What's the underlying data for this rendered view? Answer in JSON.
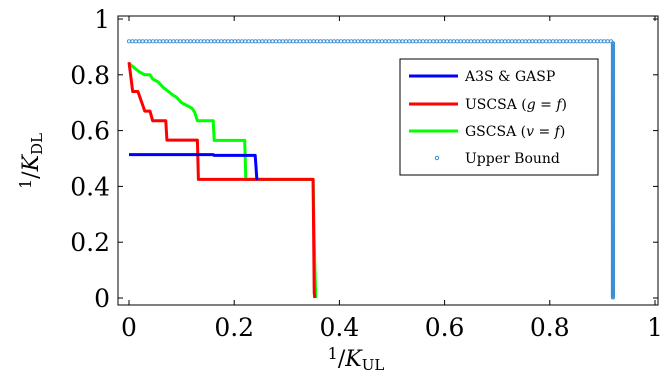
{
  "chart_data": {
    "type": "line",
    "xlabel": "1/K_UL",
    "ylabel": "1/K_DL",
    "xlim": [
      -0.02,
      1.0
    ],
    "ylim": [
      -0.02,
      1.0
    ],
    "x_ticks": [
      0,
      0.2,
      0.4,
      0.6,
      0.8,
      1
    ],
    "y_ticks": [
      0,
      0.2,
      0.4,
      0.6,
      0.8,
      1
    ],
    "x_tick_labels": [
      "0",
      "0.2",
      "0.4",
      "0.6",
      "0.8",
      "1"
    ],
    "y_tick_labels": [
      "0",
      "0.2",
      "0.4",
      "0.6",
      "0.8",
      "1"
    ],
    "grid": false,
    "legend_position": "top-right",
    "series": [
      {
        "name": "A3S & GASP",
        "color": "#0000ff",
        "style": "line",
        "points": [
          [
            0,
            0.514
          ],
          [
            0.16,
            0.514
          ],
          [
            0.162,
            0.511
          ],
          [
            0.22,
            0.511
          ],
          [
            0.222,
            0.511
          ],
          [
            0.24,
            0.511
          ],
          [
            0.243,
            0.428
          ],
          [
            0.245,
            0.425
          ]
        ]
      },
      {
        "name": "USCSA (g = f)",
        "color": "#ff0000",
        "style": "line",
        "points": [
          [
            0,
            0.845
          ],
          [
            0.007,
            0.74
          ],
          [
            0.017,
            0.74
          ],
          [
            0.03,
            0.67
          ],
          [
            0.04,
            0.67
          ],
          [
            0.045,
            0.635
          ],
          [
            0.07,
            0.635
          ],
          [
            0.072,
            0.566
          ],
          [
            0.13,
            0.566
          ],
          [
            0.132,
            0.425
          ],
          [
            0.35,
            0.425
          ],
          [
            0.352,
            0.02
          ],
          [
            0.353,
            0.0
          ]
        ]
      },
      {
        "name": "GSCSA (v = f)",
        "color": "#00ff00",
        "style": "line",
        "points": [
          [
            0,
            0.84
          ],
          [
            0.01,
            0.825
          ],
          [
            0.02,
            0.81
          ],
          [
            0.03,
            0.8
          ],
          [
            0.04,
            0.8
          ],
          [
            0.045,
            0.785
          ],
          [
            0.055,
            0.775
          ],
          [
            0.065,
            0.755
          ],
          [
            0.075,
            0.74
          ],
          [
            0.085,
            0.725
          ],
          [
            0.09,
            0.72
          ],
          [
            0.1,
            0.7
          ],
          [
            0.11,
            0.69
          ],
          [
            0.12,
            0.68
          ],
          [
            0.125,
            0.665
          ],
          [
            0.13,
            0.635
          ],
          [
            0.16,
            0.635
          ],
          [
            0.162,
            0.565
          ],
          [
            0.22,
            0.565
          ],
          [
            0.222,
            0.425
          ],
          [
            0.35,
            0.425
          ],
          [
            0.352,
            0.2
          ],
          [
            0.355,
            0.0
          ]
        ]
      },
      {
        "name": "Upper Bound",
        "color": "#3a8fd6",
        "style": "dots",
        "corner": 0.92
      }
    ]
  }
}
